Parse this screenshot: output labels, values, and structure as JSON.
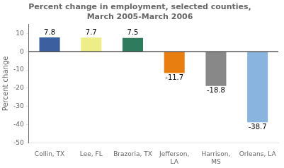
{
  "chart_data": {
    "type": "bar",
    "title": "Percent change in employment, selected counties,\nMarch 2005-March 2006",
    "categories": [
      "Collin, TX",
      "Lee, FL",
      "Brazoria, TX",
      "Jefferson,\nLA",
      "Harrison,\nMS",
      "Orleans, LA"
    ],
    "values": [
      7.8,
      7.7,
      7.5,
      -11.7,
      -18.8,
      -38.7
    ],
    "colors": [
      "#3c5fa0",
      "#eeee88",
      "#2e7b5e",
      "#e87e10",
      "#888888",
      "#8ab4e0"
    ],
    "ylabel": "Percent change",
    "ylim": [
      -50,
      15
    ],
    "yticks": [
      -50,
      -40,
      -30,
      -20,
      -10,
      0,
      10
    ],
    "grid": false,
    "data_labels": true
  }
}
